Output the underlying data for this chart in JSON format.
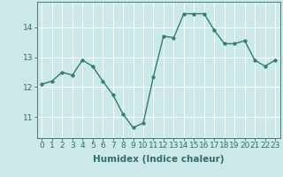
{
  "x": [
    0,
    1,
    2,
    3,
    4,
    5,
    6,
    7,
    8,
    9,
    10,
    11,
    12,
    13,
    14,
    15,
    16,
    17,
    18,
    19,
    20,
    21,
    22,
    23
  ],
  "y": [
    12.1,
    12.2,
    12.5,
    12.4,
    12.9,
    12.7,
    12.2,
    11.75,
    11.1,
    10.65,
    10.8,
    12.35,
    13.7,
    13.65,
    14.45,
    14.45,
    14.45,
    13.9,
    13.45,
    13.45,
    13.55,
    12.9,
    12.7,
    12.9
  ],
  "line_color": "#2e7d6e",
  "marker": "o",
  "markersize": 2.5,
  "linewidth": 1.0,
  "xlabel": "Humidex (Indice chaleur)",
  "xlim": [
    -0.5,
    23.5
  ],
  "ylim": [
    10.3,
    14.85
  ],
  "yticks": [
    11,
    12,
    13,
    14
  ],
  "xticks": [
    0,
    1,
    2,
    3,
    4,
    5,
    6,
    7,
    8,
    9,
    10,
    11,
    12,
    13,
    14,
    15,
    16,
    17,
    18,
    19,
    20,
    21,
    22,
    23
  ],
  "bg_color": "#cce8e8",
  "grid_color": "#ffffff",
  "tick_color": "#2e6e6e",
  "label_color": "#2e6e6e",
  "xlabel_fontsize": 7.5,
  "tick_fontsize": 6.5
}
